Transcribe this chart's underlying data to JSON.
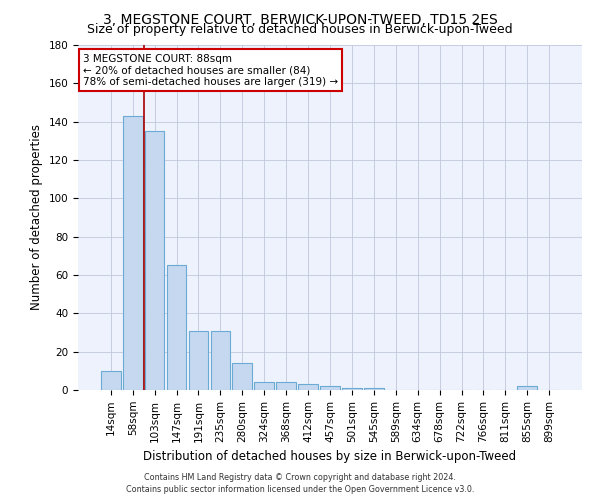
{
  "title": "3, MEGSTONE COURT, BERWICK-UPON-TWEED, TD15 2ES",
  "subtitle": "Size of property relative to detached houses in Berwick-upon-Tweed",
  "xlabel": "Distribution of detached houses by size in Berwick-upon-Tweed",
  "ylabel": "Number of detached properties",
  "categories": [
    "14sqm",
    "58sqm",
    "103sqm",
    "147sqm",
    "191sqm",
    "235sqm",
    "280sqm",
    "324sqm",
    "368sqm",
    "412sqm",
    "457sqm",
    "501sqm",
    "545sqm",
    "589sqm",
    "634sqm",
    "678sqm",
    "722sqm",
    "766sqm",
    "811sqm",
    "855sqm",
    "899sqm"
  ],
  "values": [
    10,
    143,
    135,
    65,
    31,
    31,
    14,
    4,
    4,
    3,
    2,
    1,
    1,
    0,
    0,
    0,
    0,
    0,
    0,
    2,
    0
  ],
  "bar_color": "#c5d8f0",
  "bar_edge_color": "#6aaad4",
  "vline_x": 1.5,
  "vline_color": "#aa0000",
  "annotation_title": "3 MEGSTONE COURT: 88sqm",
  "annotation_line1": "← 20% of detached houses are smaller (84)",
  "annotation_line2": "78% of semi-detached houses are larger (319) →",
  "annotation_box_color": "#ffffff",
  "annotation_box_edge_color": "#cc0000",
  "ylim": [
    0,
    180
  ],
  "yticks": [
    0,
    20,
    40,
    60,
    80,
    100,
    120,
    140,
    160,
    180
  ],
  "footer_line1": "Contains HM Land Registry data © Crown copyright and database right 2024.",
  "footer_line2": "Contains public sector information licensed under the Open Government Licence v3.0.",
  "bg_color": "#edf2fc",
  "grid_color": "#c0c8dc",
  "title_fontsize": 10,
  "subtitle_fontsize": 9,
  "xlabel_fontsize": 8.5,
  "ylabel_fontsize": 8.5,
  "tick_fontsize": 7.5,
  "annot_fontsize": 7.5
}
